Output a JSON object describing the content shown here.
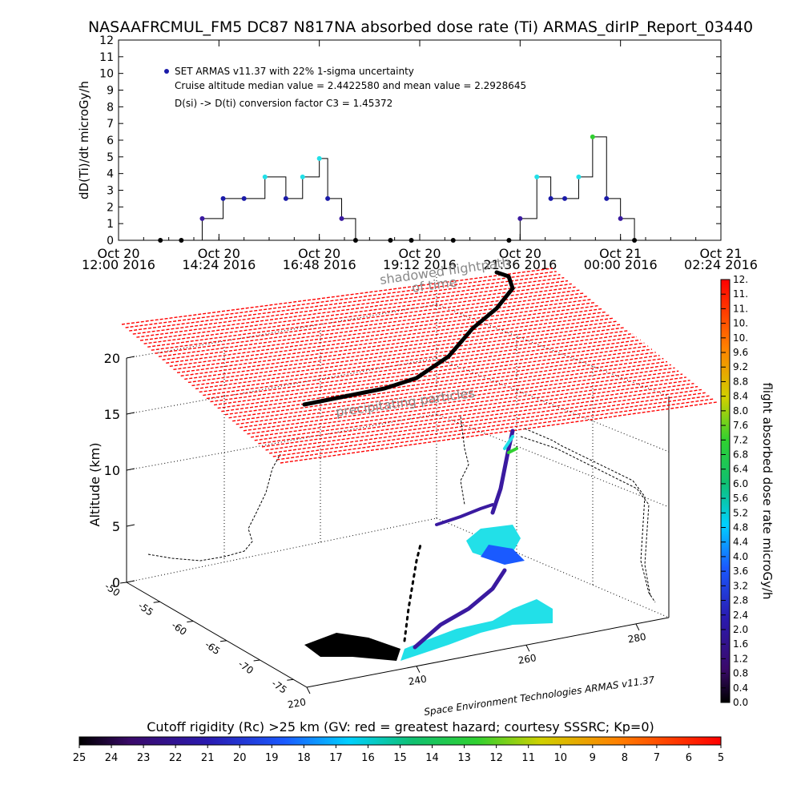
{
  "title": "NASAAFRCMUL_FM5 DC87 N817NA absorbed dose rate (Ti) ARMAS_dirIP_Report_03440",
  "colors": {
    "series": "#1a1aa8",
    "line": "#000000",
    "red_plane": "#ff0000",
    "cyan": "#22e0e8",
    "purple": "#3a1aa0"
  },
  "chart_data": [
    {
      "type": "line",
      "ylabel": "dD(Ti)/dt microGy/h",
      "ylim": [
        0,
        12
      ],
      "y_ticks": [
        "0",
        "1",
        "2",
        "3",
        "4",
        "5",
        "6",
        "7",
        "8",
        "9",
        "10",
        "11",
        "12"
      ],
      "x_ticks": [
        {
          "date": "Oct 20",
          "time": "12:00 2016"
        },
        {
          "date": "Oct 20",
          "time": "14:24 2016"
        },
        {
          "date": "Oct 20",
          "time": "16:48 2016"
        },
        {
          "date": "Oct 20",
          "time": "19:12 2016"
        },
        {
          "date": "Oct 20",
          "time": "21:36 2016"
        },
        {
          "date": "Oct 21",
          "time": "00:00 2016"
        },
        {
          "date": "Oct 21",
          "time": "02:24 2016"
        }
      ],
      "xlim": [
        "2016-10-20 12:00",
        "2016-10-21 02:24"
      ],
      "legend": {
        "entry": "SET ARMAS v11.37 with 22% 1-sigma uncertainty",
        "line2": "Cruise altitude median value = 2.4422580 and mean value = 2.2928645",
        "line3": "D(si) -> D(ti) conversion factor C3 = 1.45372",
        "position": "top-left"
      },
      "series": [
        {
          "x": [
            "2016-10-20 13:00",
            "2016-10-20 13:30",
            "2016-10-20 14:00",
            "2016-10-20 14:30",
            "2016-10-20 15:00",
            "2016-10-20 15:30",
            "2016-10-20 16:00",
            "2016-10-20 16:24",
            "2016-10-20 16:48",
            "2016-10-20 17:00",
            "2016-10-20 17:20",
            "2016-10-20 17:40",
            "2016-10-20 18:30",
            "2016-10-20 19:00",
            "2016-10-20 20:00",
            "2016-10-20 21:20",
            "2016-10-20 21:36",
            "2016-10-20 22:00",
            "2016-10-20 22:20",
            "2016-10-20 22:40",
            "2016-10-20 23:00",
            "2016-10-20 23:20",
            "2016-10-20 23:40",
            "2016-10-21 00:00",
            "2016-10-21 00:20"
          ],
          "values": [
            0.0,
            0.0,
            1.3,
            2.5,
            2.5,
            3.8,
            2.5,
            3.8,
            4.9,
            2.5,
            1.3,
            0.0,
            0.0,
            0.0,
            0.0,
            0.0,
            1.3,
            3.8,
            2.5,
            2.5,
            3.8,
            6.2,
            2.5,
            1.3,
            0.0
          ]
        }
      ]
    },
    {
      "type": "scatter",
      "ylabel": "Altitude (km)",
      "z_ticks": [
        "0",
        "5",
        "10",
        "15",
        "20"
      ],
      "lat_ticks": [
        "-50",
        "-55",
        "-60",
        "-65",
        "-70",
        "-75"
      ],
      "lon_ticks": [
        "220",
        "240",
        "260",
        "280"
      ],
      "annotations": [
        "shadowed flightpath",
        "of time",
        "precipitating particles"
      ],
      "credit": "Space Environment Technologies ARMAS v11.37"
    },
    {
      "type": "heatmap",
      "ylabel": "flight absorbed dose rate microGy/h",
      "ticks": [
        "0.0",
        "0.4",
        "0.8",
        "1.2",
        "1.6",
        "2.0",
        "2.4",
        "2.8",
        "3.2",
        "3.6",
        "4.0",
        "4.4",
        "4.8",
        "5.2",
        "5.6",
        "6.0",
        "6.4",
        "6.8",
        "7.2",
        "7.6",
        "8.0",
        "8.4",
        "8.8",
        "9.2",
        "9.6",
        "10.",
        "10.",
        "11.",
        "11.",
        "12."
      ]
    },
    {
      "type": "heatmap",
      "title": "Cutoff rigidity (Rc) >25 km (GV: red = greatest hazard; courtesy SSSRC; Kp=0)",
      "ticks": [
        "25",
        "24",
        "23",
        "22",
        "21",
        "20",
        "19",
        "18",
        "17",
        "16",
        "15",
        "14",
        "13",
        "12",
        "11",
        "10",
        "9",
        "8",
        "7",
        "6",
        "5"
      ]
    }
  ]
}
